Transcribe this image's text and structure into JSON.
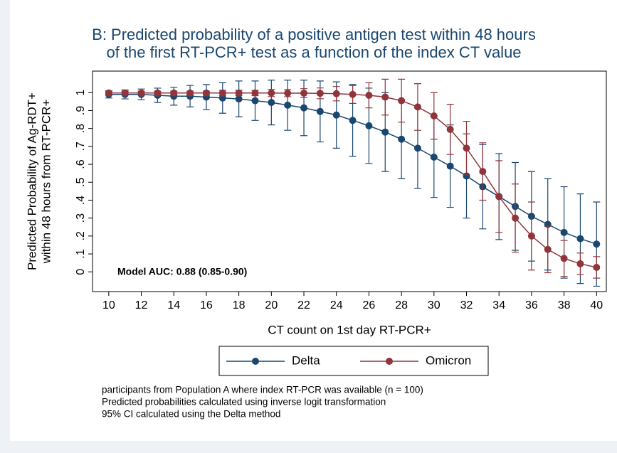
{
  "chart_data": {
    "type": "line",
    "title": [
      "B: Predicted probability of a positive antigen test within 48 hours",
      "of the first RT-PCR+ test as a function of the index CT value"
    ],
    "xlabel": "CT count on 1st day RT-PCR+",
    "ylabel": [
      "Predicted Probability of Ag-RDT+",
      "within 48 hours from RT-PCR+"
    ],
    "annotation": "Model AUC: 0.88 (0.85-0.90)",
    "notes": [
      "participants  from Population A where index RT-PCR was available (n = 100)",
      "Predicted probabilities calculated using inverse logit transformation",
      "95% CI calculated using the Delta method"
    ],
    "x": [
      10,
      11,
      12,
      13,
      14,
      15,
      16,
      17,
      18,
      19,
      20,
      21,
      22,
      23,
      24,
      25,
      26,
      27,
      28,
      29,
      30,
      31,
      32,
      33,
      34,
      35,
      36,
      37,
      38,
      39,
      40
    ],
    "series": [
      {
        "name": "Delta",
        "color": "#1a476f",
        "values": [
          0.99,
          0.99,
          0.99,
          0.985,
          0.98,
          0.98,
          0.975,
          0.97,
          0.965,
          0.955,
          0.945,
          0.93,
          0.915,
          0.895,
          0.875,
          0.845,
          0.815,
          0.78,
          0.74,
          0.69,
          0.64,
          0.59,
          0.535,
          0.475,
          0.42,
          0.365,
          0.31,
          0.265,
          0.22,
          0.185,
          0.155
        ],
        "errors": [
          0.02,
          0.025,
          0.03,
          0.04,
          0.05,
          0.06,
          0.07,
          0.085,
          0.1,
          0.11,
          0.125,
          0.14,
          0.155,
          0.17,
          0.185,
          0.2,
          0.21,
          0.22,
          0.22,
          0.225,
          0.225,
          0.23,
          0.235,
          0.235,
          0.24,
          0.245,
          0.25,
          0.255,
          0.255,
          0.25,
          0.235
        ]
      },
      {
        "name": "Omicron",
        "color": "#90353b",
        "values": [
          0.998,
          0.998,
          0.998,
          0.998,
          0.998,
          0.998,
          0.998,
          0.998,
          0.998,
          0.998,
          0.998,
          0.997,
          0.997,
          0.996,
          0.994,
          0.99,
          0.985,
          0.975,
          0.955,
          0.92,
          0.87,
          0.795,
          0.69,
          0.56,
          0.42,
          0.3,
          0.2,
          0.125,
          0.075,
          0.045,
          0.025
        ],
        "errors": [
          0.01,
          0.01,
          0.01,
          0.01,
          0.01,
          0.01,
          0.01,
          0.015,
          0.015,
          0.015,
          0.02,
          0.02,
          0.025,
          0.03,
          0.04,
          0.05,
          0.07,
          0.1,
          0.12,
          0.13,
          0.13,
          0.14,
          0.15,
          0.16,
          0.2,
          0.19,
          0.19,
          0.13,
          0.1,
          0.06,
          0.06
        ]
      }
    ],
    "xlim": [
      9,
      40.6
    ],
    "ylim": [
      -0.11,
      1.12
    ],
    "xticks": [
      10,
      12,
      14,
      16,
      18,
      20,
      22,
      24,
      26,
      28,
      30,
      32,
      34,
      36,
      38,
      40
    ],
    "yticks": [
      0,
      {
        "value": 0.1,
        "label": ".1"
      },
      {
        "value": 0.2,
        "label": ".2"
      },
      {
        "value": 0.3,
        "label": ".3"
      },
      {
        "value": 0.4,
        "label": ".4"
      },
      {
        "value": 0.5,
        "label": ".5"
      },
      {
        "value": 0.6,
        "label": ".6"
      },
      {
        "value": 0.7,
        "label": ".7"
      },
      {
        "value": 0.8,
        "label": ".8"
      },
      {
        "value": 0.9,
        "label": ".9"
      },
      1
    ],
    "grid": false,
    "legend": "bottom"
  }
}
